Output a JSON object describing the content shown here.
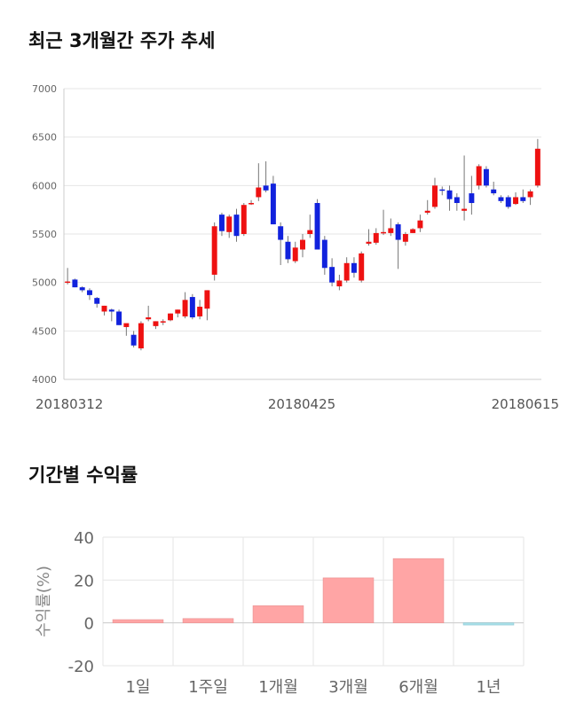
{
  "sections": {
    "price_title": "최근 3개월간 주가 추세",
    "returns_title": "기간별 수익률"
  },
  "colors": {
    "up": "#ee1111",
    "down": "#1122dd",
    "return_positive": "#ffa5a5",
    "return_negative": "#a8e0e8",
    "grid": "#e6e6e6"
  },
  "chart_data": [
    {
      "type": "candlestick",
      "title": "최근 3개월간 주가 추세",
      "ylim": [
        4000,
        7000
      ],
      "yticks": [
        4000,
        4500,
        5000,
        5500,
        6000,
        6500,
        7000
      ],
      "xticks": [
        "20180312",
        "20180425",
        "20180615"
      ],
      "candles": [
        [
          5000,
          5150,
          4980,
          5010
        ],
        [
          5030,
          5040,
          4950,
          4950
        ],
        [
          4950,
          4960,
          4900,
          4920
        ],
        [
          4920,
          4940,
          4820,
          4870
        ],
        [
          4840,
          4850,
          4740,
          4780
        ],
        [
          4700,
          4760,
          4660,
          4760
        ],
        [
          4720,
          4730,
          4600,
          4700
        ],
        [
          4700,
          4720,
          4560,
          4560
        ],
        [
          4540,
          4570,
          4450,
          4580
        ],
        [
          4460,
          4500,
          4330,
          4350
        ],
        [
          4320,
          4600,
          4300,
          4580
        ],
        [
          4620,
          4760,
          4600,
          4640
        ],
        [
          4550,
          4600,
          4520,
          4600
        ],
        [
          4600,
          4620,
          4560,
          4600
        ],
        [
          4610,
          4680,
          4600,
          4680
        ],
        [
          4680,
          4720,
          4640,
          4720
        ],
        [
          4650,
          4900,
          4630,
          4820
        ],
        [
          4850,
          4880,
          4620,
          4640
        ],
        [
          4650,
          4820,
          4620,
          4750
        ],
        [
          4730,
          4920,
          4610,
          4920
        ],
        [
          5080,
          5620,
          5020,
          5580
        ],
        [
          5700,
          5720,
          5480,
          5530
        ],
        [
          5520,
          5700,
          5460,
          5680
        ],
        [
          5700,
          5760,
          5420,
          5480
        ],
        [
          5500,
          5820,
          5480,
          5800
        ],
        [
          5810,
          5850,
          5800,
          5820
        ],
        [
          5880,
          6230,
          5840,
          5980
        ],
        [
          6000,
          6250,
          5930,
          5950
        ],
        [
          6020,
          6100,
          5600,
          5600
        ],
        [
          5580,
          5620,
          5180,
          5440
        ],
        [
          5420,
          5480,
          5200,
          5240
        ],
        [
          5220,
          5420,
          5200,
          5360
        ],
        [
          5340,
          5500,
          5260,
          5440
        ],
        [
          5500,
          5700,
          5460,
          5540
        ],
        [
          5820,
          5860,
          5340,
          5340
        ],
        [
          5440,
          5480,
          5080,
          5150
        ],
        [
          5160,
          5250,
          4960,
          5000
        ],
        [
          4960,
          5080,
          4920,
          5020
        ],
        [
          5020,
          5260,
          5000,
          5200
        ],
        [
          5200,
          5260,
          5050,
          5100
        ],
        [
          5020,
          5320,
          5000,
          5300
        ],
        [
          5400,
          5550,
          5380,
          5420
        ],
        [
          5410,
          5560,
          5390,
          5510
        ],
        [
          5510,
          5750,
          5490,
          5520
        ],
        [
          5510,
          5660,
          5480,
          5560
        ],
        [
          5600,
          5620,
          5140,
          5440
        ],
        [
          5420,
          5520,
          5380,
          5500
        ],
        [
          5510,
          5560,
          5510,
          5550
        ],
        [
          5560,
          5700,
          5520,
          5640
        ],
        [
          5720,
          5850,
          5700,
          5740
        ],
        [
          5780,
          6080,
          5760,
          6000
        ],
        [
          5960,
          5990,
          5900,
          5950
        ],
        [
          5950,
          6000,
          5740,
          5860
        ],
        [
          5880,
          5920,
          5740,
          5820
        ],
        [
          5740,
          6310,
          5640,
          5760
        ],
        [
          5920,
          6100,
          5700,
          5820
        ],
        [
          6000,
          6220,
          5960,
          6200
        ],
        [
          6170,
          6200,
          5980,
          6000
        ],
        [
          5960,
          6040,
          5900,
          5920
        ],
        [
          5880,
          5900,
          5820,
          5840
        ],
        [
          5880,
          5900,
          5760,
          5780
        ],
        [
          5810,
          5930,
          5800,
          5880
        ],
        [
          5880,
          5960,
          5820,
          5840
        ],
        [
          5880,
          5960,
          5800,
          5940
        ],
        [
          6000,
          6480,
          5980,
          6380
        ]
      ]
    },
    {
      "type": "bar",
      "title": "기간별 수익률",
      "categories": [
        "1일",
        "1주일",
        "1개월",
        "3개월",
        "6개월",
        "1년"
      ],
      "values": [
        1.5,
        2.0,
        8.0,
        21.0,
        30.0,
        -1.0
      ],
      "ylabel": "수익률(%)",
      "ylim": [
        -20,
        40
      ],
      "yticks": [
        -20,
        0,
        20,
        40
      ]
    }
  ]
}
